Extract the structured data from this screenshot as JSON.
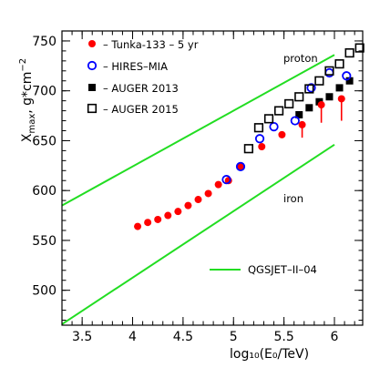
{
  "chart_data": {
    "type": "scatter",
    "xlabel": "log₁₀(E₀/TeV)",
    "ylabel_main": "X",
    "ylabel_sub": "max",
    "ylabel_tail": ", g*cm",
    "ylabel_sup": "−2",
    "xlim": [
      3.3,
      6.28
    ],
    "ylim": [
      465,
      760
    ],
    "x_ticks": [
      {
        "value": 3.5,
        "label": "3.5"
      },
      {
        "value": 4.0,
        "label": "4"
      },
      {
        "value": 4.5,
        "label": "4.5"
      },
      {
        "value": 5.0,
        "label": "5"
      },
      {
        "value": 5.5,
        "label": "5.5"
      },
      {
        "value": 6.0,
        "label": "6"
      }
    ],
    "y_ticks": [
      {
        "value": 500,
        "label": "500"
      },
      {
        "value": 550,
        "label": "550"
      },
      {
        "value": 600,
        "label": "600"
      },
      {
        "value": 650,
        "label": "650"
      },
      {
        "value": 700,
        "label": "700"
      },
      {
        "value": 750,
        "label": "750"
      }
    ],
    "x_minor_step": 0.1,
    "y_minor_step": 10,
    "grid": false,
    "legend_position": "top-left",
    "series": [
      {
        "name": "– Tunka-133 – 5 yr",
        "marker": "filled-circle",
        "color": "#ff0000",
        "points": [
          {
            "x": 4.05,
            "y": 564
          },
          {
            "x": 4.15,
            "y": 568
          },
          {
            "x": 4.25,
            "y": 571
          },
          {
            "x": 4.35,
            "y": 575
          },
          {
            "x": 4.45,
            "y": 579
          },
          {
            "x": 4.55,
            "y": 585
          },
          {
            "x": 4.65,
            "y": 591
          },
          {
            "x": 4.75,
            "y": 597
          },
          {
            "x": 4.85,
            "y": 606
          },
          {
            "x": 4.95,
            "y": 610
          },
          {
            "x": 5.07,
            "y": 624
          },
          {
            "x": 5.28,
            "y": 644
          },
          {
            "x": 5.48,
            "y": 656
          },
          {
            "x": 5.68,
            "y": 666,
            "err": 13
          },
          {
            "x": 5.87,
            "y": 686,
            "err": 18
          },
          {
            "x": 6.07,
            "y": 692,
            "err": 22
          }
        ]
      },
      {
        "name": "– HIRES–MIA",
        "marker": "open-circle",
        "color": "#0000ff",
        "points": [
          {
            "x": 4.93,
            "y": 611
          },
          {
            "x": 5.07,
            "y": 624
          },
          {
            "x": 5.26,
            "y": 652
          },
          {
            "x": 5.4,
            "y": 664
          },
          {
            "x": 5.61,
            "y": 670
          },
          {
            "x": 5.77,
            "y": 703
          },
          {
            "x": 5.95,
            "y": 718
          },
          {
            "x": 6.12,
            "y": 715
          }
        ]
      },
      {
        "name": "– AUGER 2013",
        "marker": "filled-square",
        "color": "#000000",
        "points": [
          {
            "x": 5.65,
            "y": 676
          },
          {
            "x": 5.75,
            "y": 683
          },
          {
            "x": 5.85,
            "y": 689
          },
          {
            "x": 5.95,
            "y": 694
          },
          {
            "x": 6.05,
            "y": 703
          },
          {
            "x": 6.15,
            "y": 710
          }
        ]
      },
      {
        "name": "– AUGER 2015",
        "marker": "open-square",
        "color": "#000000",
        "points": [
          {
            "x": 5.15,
            "y": 642
          },
          {
            "x": 5.25,
            "y": 663
          },
          {
            "x": 5.35,
            "y": 672
          },
          {
            "x": 5.45,
            "y": 680
          },
          {
            "x": 5.55,
            "y": 687
          },
          {
            "x": 5.65,
            "y": 694
          },
          {
            "x": 5.75,
            "y": 702
          },
          {
            "x": 5.85,
            "y": 710
          },
          {
            "x": 5.95,
            "y": 720
          },
          {
            "x": 6.05,
            "y": 727
          },
          {
            "x": 6.15,
            "y": 738
          },
          {
            "x": 6.25,
            "y": 743
          }
        ]
      }
    ],
    "model_lines": {
      "name": "QGSJET–II–04",
      "color": "#22dd22",
      "lines": [
        {
          "label": "proton",
          "points": [
            {
              "x": 3.3,
              "y": 585
            },
            {
              "x": 6.0,
              "y": 736
            }
          ]
        },
        {
          "label": "iron",
          "points": [
            {
              "x": 3.3,
              "y": 466
            },
            {
              "x": 6.0,
              "y": 646
            }
          ]
        }
      ]
    }
  }
}
